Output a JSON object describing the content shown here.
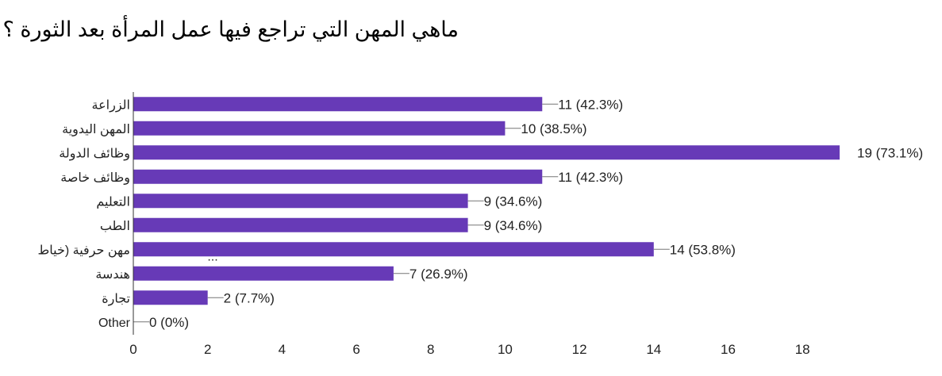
{
  "title": "ماهي المهن التي تراجع فيها عمل المرأة بعد الثورة ؟",
  "chart_data": {
    "type": "bar",
    "orientation": "horizontal",
    "title": "ماهي المهن التي تراجع فيها عمل المرأة بعد الثورة ؟",
    "categories": [
      "الزراعة",
      "المهن اليدوية",
      "وظائف الدولة",
      "وظائف خاصة",
      "التعليم",
      "الطب",
      "مهن حرفية (خياط",
      "هندسة",
      "تجارة",
      "Other"
    ],
    "values": [
      11,
      10,
      19,
      11,
      9,
      9,
      14,
      7,
      2,
      0
    ],
    "data_labels": [
      "11 (42.3%)",
      "10 (38.5%)",
      "19 (73.1%)",
      "11 (42.3%)",
      "9 (34.6%)",
      "9 (34.6%)",
      "14 (53.8%)",
      "7 (26.9%)",
      "2 (7.7%)",
      "0 (0%)"
    ],
    "truncated_label_marker": "...",
    "x_ticks": [
      0,
      2,
      4,
      6,
      8,
      10,
      12,
      14,
      16,
      18
    ],
    "xlim": [
      0,
      19
    ],
    "grid": false,
    "bar_color": "#673ab7"
  }
}
